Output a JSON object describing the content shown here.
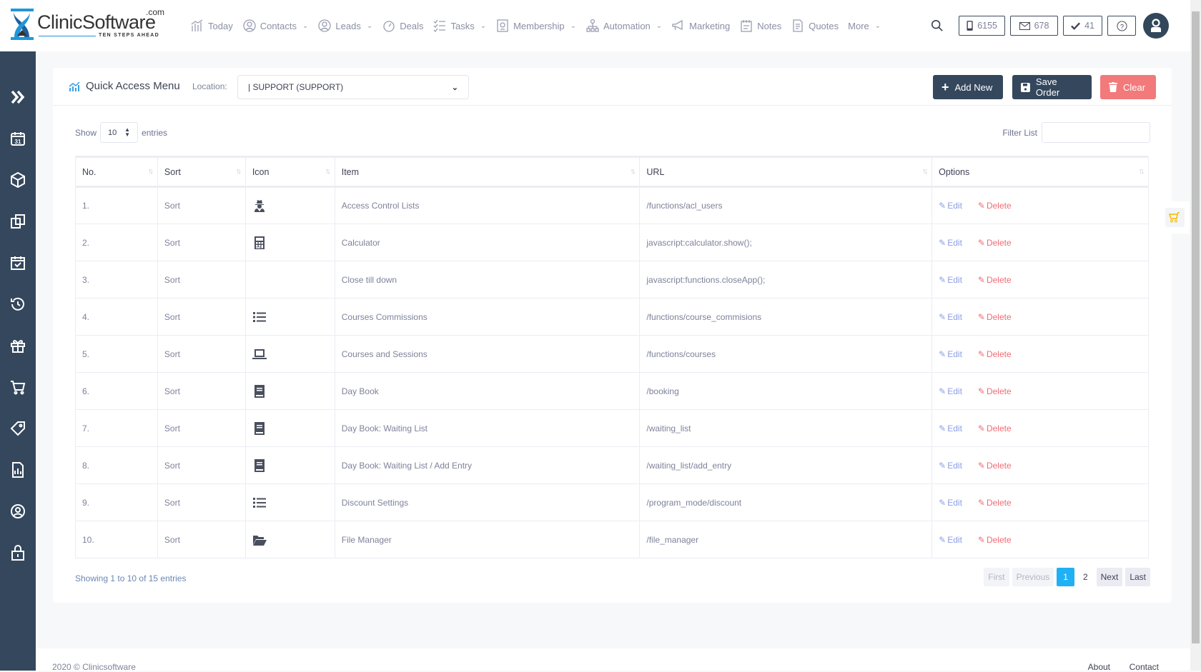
{
  "brand": {
    "name": "ClinicSoftware",
    "suffix": ".com",
    "tagline": "TEN STEPS AHEAD"
  },
  "nav": [
    {
      "label": "Today",
      "icon": "chart-bar-icon",
      "dropdown": false
    },
    {
      "label": "Contacts",
      "icon": "contacts-icon",
      "dropdown": true
    },
    {
      "label": "Leads",
      "icon": "user-circle-icon",
      "dropdown": true
    },
    {
      "label": "Deals",
      "icon": "gauge-icon",
      "dropdown": false
    },
    {
      "label": "Tasks",
      "icon": "checklist-icon",
      "dropdown": true
    },
    {
      "label": "Membership",
      "icon": "membership-icon",
      "dropdown": true
    },
    {
      "label": "Automation",
      "icon": "sitemap-icon",
      "dropdown": true
    },
    {
      "label": "Marketing",
      "icon": "megaphone-icon",
      "dropdown": false
    },
    {
      "label": "Notes",
      "icon": "notes-icon",
      "dropdown": false
    },
    {
      "label": "Quotes",
      "icon": "quotes-icon",
      "dropdown": false
    },
    {
      "label": "More",
      "icon": "",
      "dropdown": true
    }
  ],
  "header_counters": {
    "sms": "6155",
    "mail": "678",
    "tasks": "41"
  },
  "sidebar_icons": [
    "chevrons-right-icon",
    "calendar-icon",
    "box-icon",
    "copy-icon",
    "calendar-check-icon",
    "history-icon",
    "gift-icon",
    "cart-icon",
    "tags-icon",
    "report-icon",
    "user-circle-icon",
    "lock-icon"
  ],
  "page": {
    "title": "Quick Access Menu",
    "location_label": "Location:",
    "location_value": "| SUPPORT (SUPPORT)",
    "add_new": "Add New",
    "save_order": "Save Order",
    "clear": "Clear",
    "show_label": "Show",
    "show_value": "10",
    "entries_label": "entries",
    "filter_label": "Filter List",
    "filter_value": ""
  },
  "colors": {
    "primary": "#34475c",
    "danger": "#f27a7a",
    "active_page": "#20b0f5",
    "edit": "#8c9ee6",
    "delete": "#f06b73"
  },
  "table": {
    "columns": [
      "No.",
      "Sort",
      "Icon",
      "Item",
      "URL",
      "Options"
    ],
    "edit_label": "Edit",
    "delete_label": "Delete",
    "rows": [
      {
        "no": "1.",
        "sort": "Sort",
        "icon": "user-secret-icon",
        "item": "Access Control Lists",
        "url": "/functions/acl_users"
      },
      {
        "no": "2.",
        "sort": "Sort",
        "icon": "calculator-icon",
        "item": "Calculator",
        "url": "javascript:calculator.show();"
      },
      {
        "no": "3.",
        "sort": "Sort",
        "icon": "",
        "item": "Close till down",
        "url": "javascript:functions.closeApp();"
      },
      {
        "no": "4.",
        "sort": "Sort",
        "icon": "list-icon",
        "item": "Courses Commissions",
        "url": "/functions/course_commisions"
      },
      {
        "no": "5.",
        "sort": "Sort",
        "icon": "laptop-icon",
        "item": "Courses and Sessions",
        "url": "/functions/courses"
      },
      {
        "no": "6.",
        "sort": "Sort",
        "icon": "book-icon",
        "item": "Day Book",
        "url": "/booking"
      },
      {
        "no": "7.",
        "sort": "Sort",
        "icon": "book-icon",
        "item": "Day Book: Waiting List",
        "url": "/waiting_list"
      },
      {
        "no": "8.",
        "sort": "Sort",
        "icon": "book-icon",
        "item": "Day Book: Waiting List / Add Entry",
        "url": "/waiting_list/add_entry"
      },
      {
        "no": "9.",
        "sort": "Sort",
        "icon": "list-icon",
        "item": "Discount Settings",
        "url": "/program_mode/discount"
      },
      {
        "no": "10.",
        "sort": "Sort",
        "icon": "folder-open-icon",
        "item": "File Manager",
        "url": "/file_manager"
      }
    ]
  },
  "pagination": {
    "info": "Showing 1 to 10 of 15 entries",
    "first": "First",
    "previous": "Previous",
    "pages": [
      "1",
      "2"
    ],
    "current": "1",
    "next": "Next",
    "last": "Last"
  },
  "footer": {
    "copyright": "2020 © Clinicsoftware",
    "links": [
      "About",
      "Contact"
    ]
  }
}
